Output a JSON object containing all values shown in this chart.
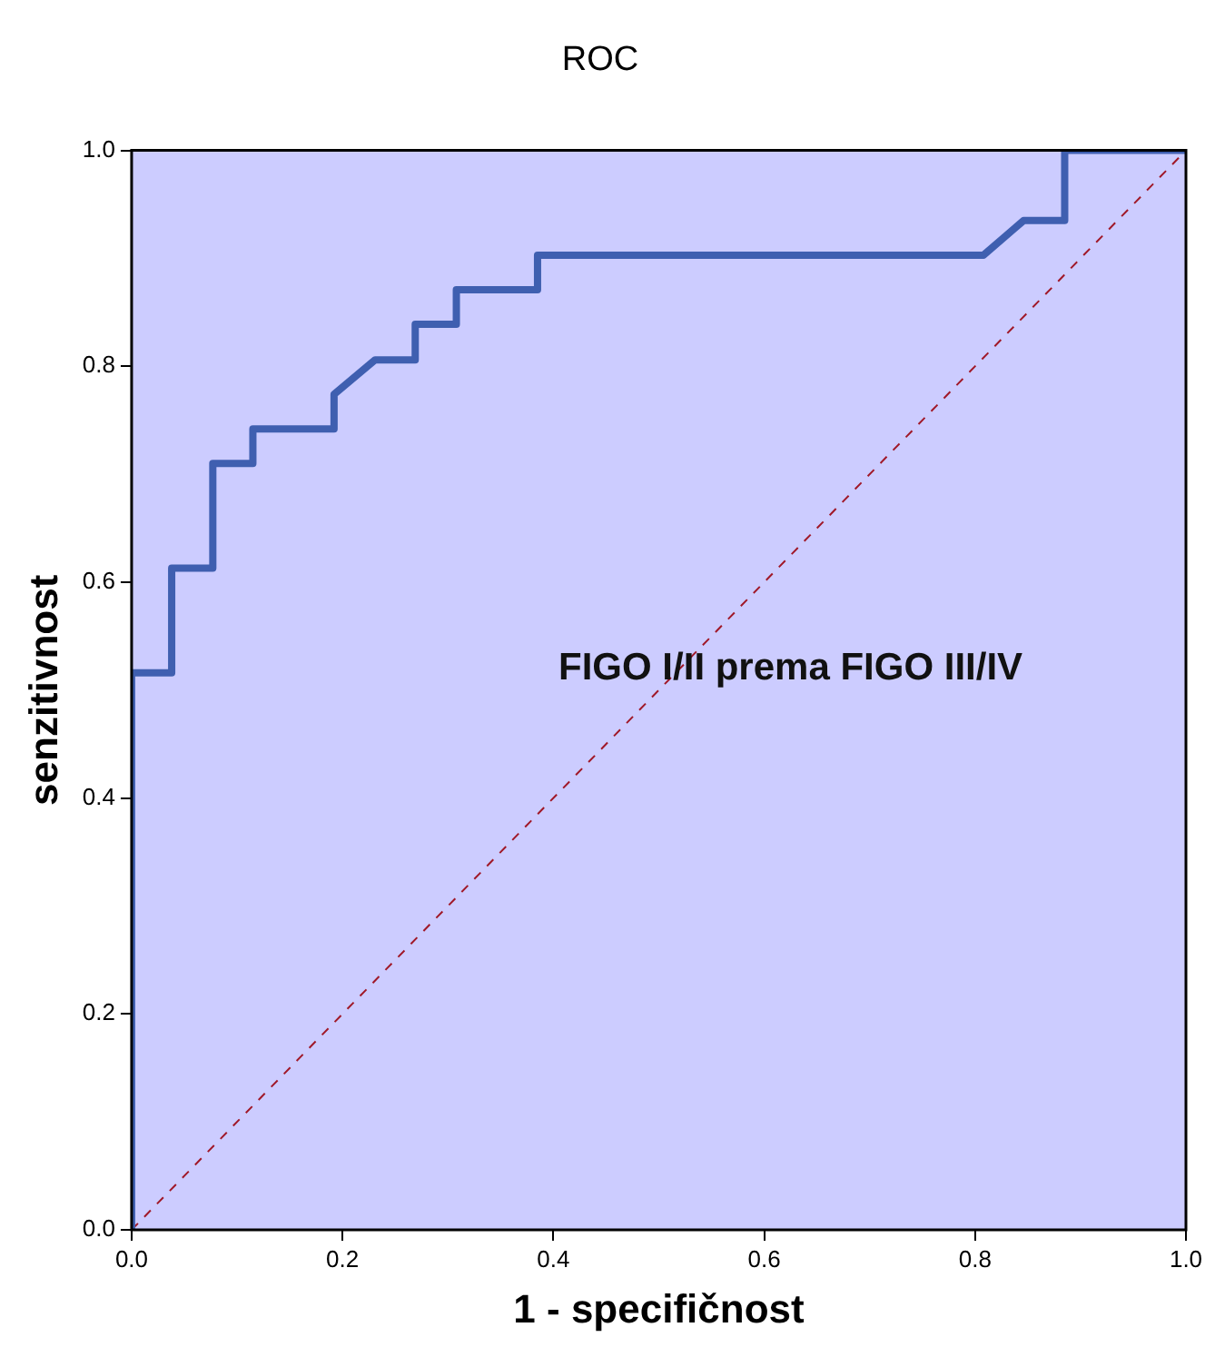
{
  "chart_data": {
    "type": "line",
    "title": "ROC",
    "xlabel": "1 - specifičnost",
    "ylabel": "senzitivnost",
    "annotations": [
      "FIGO I/II prema FIGO III/IV"
    ],
    "xlim": [
      0,
      1
    ],
    "ylim": [
      0,
      1
    ],
    "xticks": [
      {
        "value": 0,
        "label": "0.0"
      },
      {
        "value": 0.2,
        "label": "0.2"
      },
      {
        "value": 0.4,
        "label": "0.4"
      },
      {
        "value": 0.6,
        "label": "0.6"
      },
      {
        "value": 0.8,
        "label": "0.8"
      },
      {
        "value": 1,
        "label": "1.0"
      }
    ],
    "yticks": [
      {
        "value": 0,
        "label": "0.0"
      },
      {
        "value": 0.2,
        "label": "0.2"
      },
      {
        "value": 0.4,
        "label": "0.4"
      },
      {
        "value": 0.6,
        "label": "0.6"
      },
      {
        "value": 0.8,
        "label": "0.8"
      },
      {
        "value": 1,
        "label": "1.0"
      }
    ],
    "grid": false,
    "legend": false,
    "marker": "none",
    "series": [
      {
        "color": "#3f5fb0",
        "line_style": "solid",
        "x": [
          0,
          0,
          0.038,
          0.038,
          0.077,
          0.077,
          0.115,
          0.115,
          0.192,
          0.192,
          0.231,
          0.269,
          0.269,
          0.308,
          0.308,
          0.385,
          0.385,
          0.808,
          0.846,
          0.885,
          0.885,
          1
        ],
        "values": [
          0,
          0.516,
          0.516,
          0.613,
          0.613,
          0.71,
          0.71,
          0.742,
          0.742,
          0.774,
          0.806,
          0.806,
          0.839,
          0.839,
          0.871,
          0.871,
          0.903,
          0.903,
          0.935,
          0.935,
          1,
          1
        ]
      },
      {
        "color": "#a01828",
        "line_style": "dashed",
        "x": [
          0,
          1
        ],
        "values": [
          0,
          1
        ]
      }
    ]
  }
}
